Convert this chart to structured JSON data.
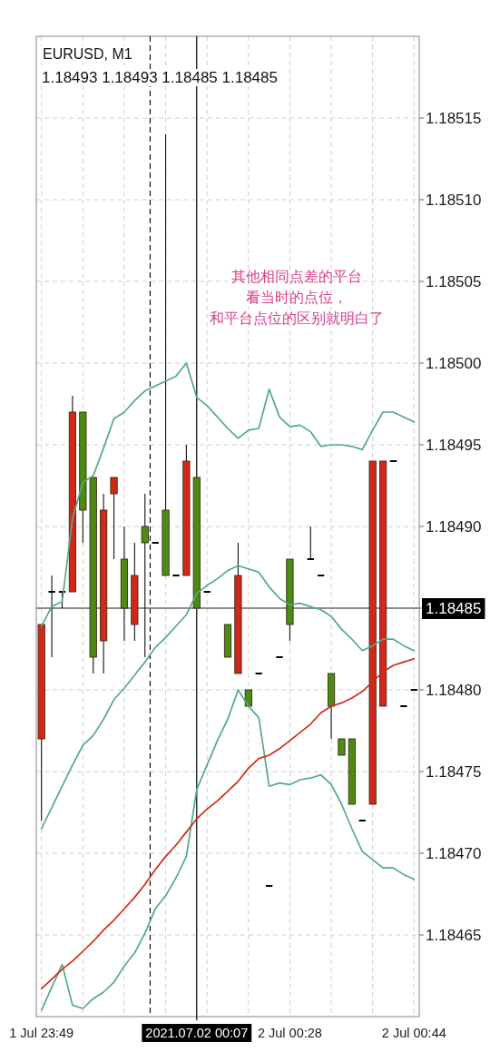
{
  "chart_data": {
    "type": "candlestick",
    "title": "EURUSD, M1",
    "subtitle": "1.18493 1.18493 1.18485 1.18485",
    "annotations": [
      "其他相同点差的平台",
      "看当时的点位，",
      "和平台点位的区别就明白了"
    ],
    "categories": [
      "1 Jul 23:49",
      null,
      null,
      null,
      null,
      null,
      null,
      null,
      null,
      null,
      null,
      null,
      null,
      null,
      null,
      "2021.07.02 00:07",
      null,
      null,
      null,
      null,
      null,
      null,
      null,
      null,
      "2 Jul 00:28",
      null,
      null,
      null,
      null,
      null,
      null,
      null,
      null,
      null,
      null,
      null,
      "2 Jul 00:44"
    ],
    "ohlc": [
      [
        1.18477,
        1.18484,
        1.18472,
        1.18484
      ],
      [
        1.18486,
        1.18487,
        1.18482,
        1.18486
      ],
      [
        1.18486,
        1.18486,
        1.18485,
        1.18486
      ],
      [
        1.18486,
        1.18498,
        1.18486,
        1.18497
      ],
      [
        1.18497,
        1.18497,
        1.18489,
        1.18491
      ],
      [
        1.18493,
        1.18493,
        1.18481,
        1.18482
      ],
      [
        1.18483,
        1.18492,
        1.18481,
        1.18491
      ],
      [
        1.18492,
        1.18493,
        1.18488,
        1.18493
      ],
      [
        1.18488,
        1.1849,
        1.18483,
        1.18485
      ],
      [
        1.18484,
        1.18489,
        1.18483,
        1.18487
      ],
      [
        1.1849,
        1.18492,
        1.18482,
        1.18489
      ],
      [
        1.18489,
        1.18489,
        1.18489,
        1.18489
      ],
      [
        1.18491,
        1.18514,
        1.18487,
        1.18487
      ],
      [
        1.18487,
        1.18487,
        1.18487,
        1.18487
      ],
      [
        1.18487,
        1.18495,
        1.18487,
        1.18494
      ],
      [
        1.18493,
        1.18493,
        1.18485,
        1.18485
      ],
      [
        1.18486,
        1.18486,
        1.18486,
        1.18486
      ],
      null,
      [
        1.18484,
        1.18484,
        1.18482,
        1.18482
      ],
      [
        1.18481,
        1.18489,
        1.18481,
        1.18487
      ],
      [
        1.1848,
        1.1848,
        1.18479,
        1.18479
      ],
      [
        1.18481,
        1.18481,
        1.18481,
        1.18481
      ],
      [
        1.18468,
        1.18468,
        1.18468,
        1.18468
      ],
      [
        1.18482,
        1.18482,
        1.18482,
        1.18482
      ],
      [
        1.18488,
        1.18488,
        1.18483,
        1.18484
      ],
      null,
      [
        1.18488,
        1.1849,
        1.18488,
        1.18488
      ],
      [
        1.18487,
        1.18487,
        1.18487,
        1.18487
      ],
      [
        1.18481,
        1.18481,
        1.18477,
        1.18479
      ],
      [
        1.18477,
        1.18477,
        1.18476,
        1.18476
      ],
      [
        1.18477,
        1.18477,
        1.18473,
        1.18473
      ],
      [
        1.18472,
        1.18472,
        1.18472,
        1.18472
      ],
      [
        1.18473,
        1.18494,
        1.18473,
        1.18494
      ],
      [
        1.18479,
        1.18494,
        1.18479,
        1.18494
      ],
      [
        1.18494,
        1.18494,
        1.18494,
        1.18494
      ],
      [
        1.18479,
        1.18479,
        1.18479,
        1.18479
      ],
      [
        1.1848,
        1.1848,
        1.1848,
        1.1848
      ]
    ],
    "colors": [
      "#d2281a",
      "#000000",
      "#000000",
      "#d2281a",
      "#4c8b14",
      "#4c8b14",
      "#d2281a",
      "#d2281a",
      "#4c8b14",
      "#d2281a",
      "#4c8b14",
      "#000000",
      "#4c8b14",
      "#000000",
      "#d2281a",
      "#4c8b14",
      "#000000",
      null,
      "#4c8b14",
      "#d2281a",
      "#4c8b14",
      "#000000",
      "#000000",
      "#000000",
      "#4c8b14",
      null,
      "#000000",
      "#000000",
      "#4c8b14",
      "#4c8b14",
      "#4c8b14",
      "#000000",
      "#d2281a",
      "#d2281a",
      "#000000",
      "#000000",
      "#000000"
    ],
    "series": [
      {
        "type": "line",
        "color": "#55a887",
        "values": [
          1.184839,
          1.184851,
          1.184854,
          1.184905,
          1.184927,
          1.184931,
          1.184948,
          1.184966,
          1.18497,
          1.184977,
          1.184983,
          1.184986,
          1.184989,
          1.184992,
          1.185,
          1.184979,
          1.184974,
          1.184967,
          1.18496,
          1.184954,
          1.184959,
          1.18496,
          1.184984,
          1.184967,
          1.184961,
          1.184962,
          1.184958,
          1.184949,
          1.18495,
          1.18495,
          1.184949,
          1.184947,
          1.184959,
          1.18497,
          1.18497,
          1.184967,
          1.184964
        ]
      },
      {
        "type": "line",
        "color": "#55a887",
        "values": [
          1.184715,
          1.184728,
          1.184741,
          1.184754,
          1.184766,
          1.184772,
          1.184782,
          1.184794,
          1.184801,
          1.184809,
          1.184817,
          1.184826,
          1.184832,
          1.184839,
          1.184846,
          1.184859,
          1.184864,
          1.184868,
          1.184873,
          1.184876,
          1.184874,
          1.184872,
          1.184863,
          1.184856,
          1.184852,
          1.184853,
          1.184851,
          1.184849,
          1.184845,
          1.184837,
          1.184831,
          1.184824,
          1.184827,
          1.184831,
          1.184831,
          1.184827,
          1.184824
        ]
      },
      {
        "type": "line",
        "color": "#55a887",
        "values": [
          1.184604,
          1.184618,
          1.184632,
          1.184607,
          1.184605,
          1.184611,
          1.184615,
          1.184621,
          1.184631,
          1.184639,
          1.184651,
          1.184666,
          1.184674,
          1.184685,
          1.184698,
          1.184739,
          1.184754,
          1.184769,
          1.184782,
          1.1848,
          1.18479,
          1.184783,
          1.184741,
          1.184743,
          1.184742,
          1.184745,
          1.184746,
          1.184748,
          1.184742,
          1.18473,
          1.184715,
          1.184701,
          1.184696,
          1.184691,
          1.184691,
          1.184687,
          1.184684
        ]
      },
      {
        "type": "line",
        "color": "#d02a1e",
        "values": [
          1.184617,
          1.184623,
          1.184629,
          1.184634,
          1.18464,
          1.184646,
          1.184653,
          1.184659,
          1.184666,
          1.184673,
          1.184681,
          1.18469,
          1.184698,
          1.184705,
          1.184713,
          1.184721,
          1.184727,
          1.184732,
          1.184738,
          1.184744,
          1.184752,
          1.184758,
          1.18476,
          1.184764,
          1.184769,
          1.184774,
          1.184779,
          1.184786,
          1.18479,
          1.184792,
          1.184795,
          1.184799,
          1.184805,
          1.184811,
          1.184815,
          1.184817,
          1.184819
        ]
      }
    ],
    "ylim": [
      1.1846,
      1.1852
    ],
    "yticks": [
      1.18465,
      {
        "value": 1.1847,
        "label": "1.18470"
      },
      1.18475,
      {
        "value": 1.1848,
        "label": "1.18480"
      },
      {
        "value": 1.18485,
        "label": null
      },
      {
        "value": 1.1849,
        "label": "1.18490"
      },
      1.18495,
      {
        "value": 1.185,
        "label": "1.18500"
      },
      1.18505,
      {
        "value": 1.1851,
        "label": "1.18510"
      },
      1.18515
    ],
    "ref_lines": [
      {
        "axis": "x",
        "value": "2021.07.02 00:07",
        "line_style": "solid",
        "color": "#000000"
      },
      {
        "axis": "y",
        "value": 1.18485,
        "label": "1.18485",
        "line_style": "solid",
        "color": "#6b6b6b"
      }
    ],
    "grid": true
  }
}
